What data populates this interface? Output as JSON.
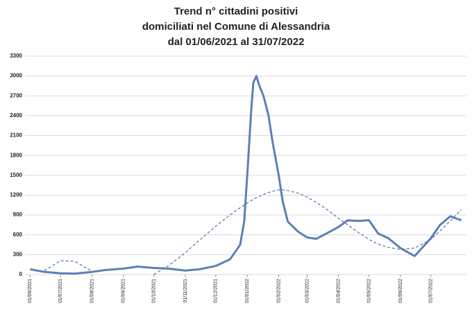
{
  "chart_data": {
    "type": "line",
    "title": [
      "Trend n° cittadini positivi",
      "domiciliati nel Comune di Alessandria",
      "dal 01/06/2021 al 31/07/2022"
    ],
    "x": [
      "2021-06-01",
      "2021-06-15",
      "2021-07-01",
      "2021-07-15",
      "2021-08-01",
      "2021-08-15",
      "2021-09-01",
      "2021-09-15",
      "2021-10-01",
      "2021-10-15",
      "2021-11-01",
      "2021-11-15",
      "2021-12-01",
      "2021-12-15",
      "2021-12-25",
      "2021-12-29",
      "2022-01-01",
      "2022-01-03",
      "2022-01-05",
      "2022-01-07",
      "2022-01-10",
      "2022-01-13",
      "2022-01-17",
      "2022-01-22",
      "2022-01-26",
      "2022-02-01",
      "2022-02-05",
      "2022-02-10",
      "2022-02-20",
      "2022-03-01",
      "2022-03-10",
      "2022-03-20",
      "2022-04-01",
      "2022-04-10",
      "2022-04-20",
      "2022-05-01",
      "2022-05-10",
      "2022-05-20",
      "2022-06-01",
      "2022-06-15",
      "2022-07-01",
      "2022-07-10",
      "2022-07-20",
      "2022-07-31"
    ],
    "series": [
      {
        "color": "#5b7fb5",
        "style": "solid",
        "values": [
          80,
          40,
          20,
          15,
          40,
          70,
          90,
          120,
          100,
          90,
          60,
          80,
          130,
          230,
          450,
          800,
          1500,
          2000,
          2500,
          2900,
          3000,
          2850,
          2700,
          2400,
          2000,
          1500,
          1100,
          800,
          650,
          560,
          540,
          620,
          720,
          820,
          810,
          820,
          620,
          550,
          400,
          280,
          550,
          750,
          880,
          820
        ]
      },
      {
        "color": "#4a72b0",
        "style": "dashed",
        "values": [
          null,
          60,
          210,
          200,
          50,
          null,
          null,
          null,
          0,
          130,
          330,
          520,
          730,
          900,
          1010,
          1050,
          1080,
          1100,
          1120,
          1140,
          1160,
          1180,
          1210,
          1240,
          1260,
          1280,
          1280,
          1270,
          1230,
          1170,
          1090,
          990,
          850,
          750,
          640,
          530,
          460,
          410,
          380,
          400,
          530,
          660,
          810,
          980
        ]
      }
    ],
    "xlim": [
      "2021-05-27",
      "2022-08-05"
    ],
    "xticks": [
      {
        "value": "2021-06-01",
        "label": "01/06/2021"
      },
      {
        "value": "2021-07-01",
        "label": "01/07/2021"
      },
      {
        "value": "2021-08-01",
        "label": "01/08/2021"
      },
      {
        "value": "2021-09-01",
        "label": "01/09/2021"
      },
      {
        "value": "2021-10-01",
        "label": "01/10/2021"
      },
      {
        "value": "2021-11-01",
        "label": "01/11/2021"
      },
      {
        "value": "2021-12-01",
        "label": "01/12/2021"
      },
      {
        "value": "2022-01-01",
        "label": "01/01/2022"
      },
      {
        "value": "2022-02-01",
        "label": "01/02/2022"
      },
      {
        "value": "2022-03-01",
        "label": "01/03/2022"
      },
      {
        "value": "2022-04-01",
        "label": "01/04/2022"
      },
      {
        "value": "2022-05-01",
        "label": "01/05/2022"
      },
      {
        "value": "2022-06-01",
        "label": "01/06/2022"
      },
      {
        "value": "2022-07-01",
        "label": "01/07/2022"
      }
    ],
    "ylim": [
      0,
      3300
    ],
    "yticks": [
      0,
      300,
      600,
      900,
      1200,
      1500,
      1800,
      2100,
      2400,
      2700,
      3000,
      3300
    ],
    "grid": true
  }
}
